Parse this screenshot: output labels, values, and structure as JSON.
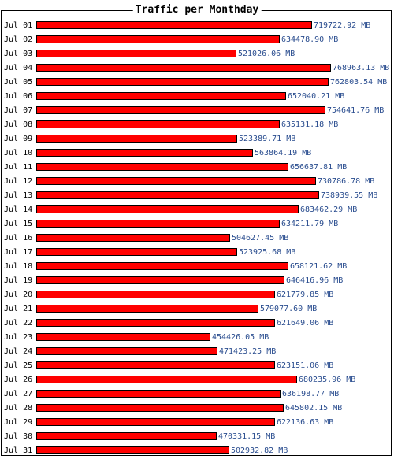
{
  "chart_data": {
    "type": "bar",
    "orientation": "horizontal",
    "title": "Traffic per Monthday",
    "unit": "MB",
    "bar_color": "#ff0000",
    "bar_border_color": "#000000",
    "value_label_color": "#2a4d8f",
    "categories": [
      "Jul 01",
      "Jul 02",
      "Jul 03",
      "Jul 04",
      "Jul 05",
      "Jul 06",
      "Jul 07",
      "Jul 08",
      "Jul 09",
      "Jul 10",
      "Jul 11",
      "Jul 12",
      "Jul 13",
      "Jul 14",
      "Jul 15",
      "Jul 16",
      "Jul 17",
      "Jul 18",
      "Jul 19",
      "Jul 20",
      "Jul 21",
      "Jul 22",
      "Jul 23",
      "Jul 24",
      "Jul 25",
      "Jul 26",
      "Jul 27",
      "Jul 28",
      "Jul 29",
      "Jul 30",
      "Jul 31"
    ],
    "values": [
      719722.92,
      634478.9,
      521026.06,
      768963.13,
      762803.54,
      652040.21,
      754641.76,
      635131.18,
      523389.71,
      563864.19,
      656637.81,
      730786.78,
      738939.55,
      683462.29,
      634211.79,
      504627.45,
      523925.68,
      658121.62,
      646416.96,
      621779.85,
      579077.6,
      621649.06,
      454426.05,
      471423.25,
      623151.06,
      680235.96,
      636198.77,
      645802.15,
      622136.63,
      470331.15,
      502932.82
    ],
    "value_labels": [
      "719722.92 MB",
      "634478.90 MB",
      "521026.06 MB",
      "768963.13 MB",
      "762803.54 MB",
      "652040.21 MB",
      "754641.76 MB",
      "635131.18 MB",
      "523389.71 MB",
      "563864.19 MB",
      "656637.81 MB",
      "730786.78 MB",
      "738939.55 MB",
      "683462.29 MB",
      "634211.79 MB",
      "504627.45 MB",
      "523925.68 MB",
      "658121.62 MB",
      "646416.96 MB",
      "621779.85 MB",
      "579077.60 MB",
      "621649.06 MB",
      "454426.05 MB",
      "471423.25 MB",
      "623151.06 MB",
      "680235.96 MB",
      "636198.77 MB",
      "645802.15 MB",
      "622136.63 MB",
      "470331.15 MB",
      "502932.82 MB"
    ],
    "xlim": [
      0,
      768963.13
    ],
    "grid": false,
    "legend": "none"
  }
}
